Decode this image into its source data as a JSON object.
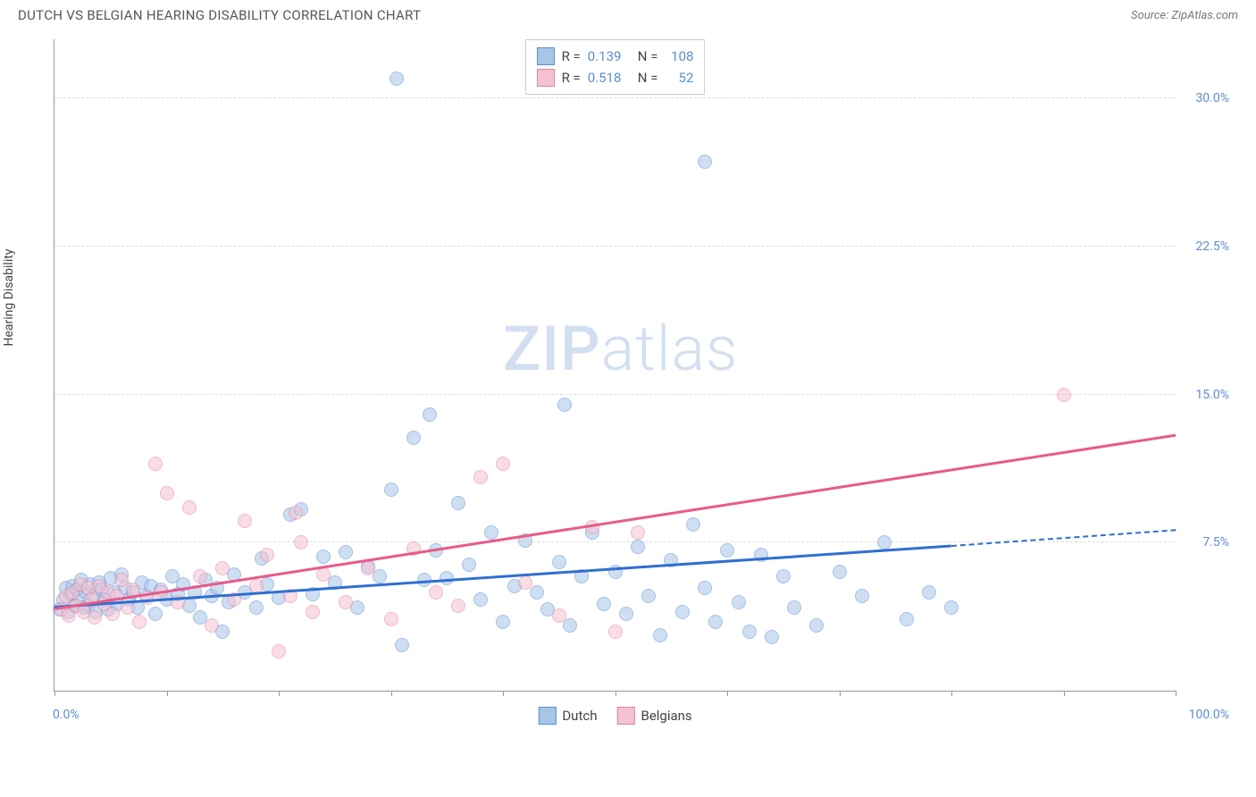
{
  "title": "DUTCH VS BELGIAN HEARING DISABILITY CORRELATION CHART",
  "source": "Source: ZipAtlas.com",
  "ylabel": "Hearing Disability",
  "watermark": {
    "zip": "ZIP",
    "atlas": "atlas",
    "color": "#d3dff0"
  },
  "chart": {
    "type": "scatter",
    "background_color": "#ffffff",
    "grid_color": "#dddddd",
    "axis_color": "#999999",
    "label_color_blue": "#5b8dd6",
    "title_fontsize": 15,
    "label_fontsize": 14,
    "xlim": [
      0,
      100
    ],
    "ylim": [
      0,
      33
    ],
    "x_ticks": [
      0,
      10,
      20,
      30,
      40,
      50,
      60,
      70,
      80,
      90,
      100
    ],
    "x_tick_labels": {
      "0": "0.0%",
      "100": "100.0%"
    },
    "y_gridlines": [
      7.5,
      15.0,
      22.5,
      30.0
    ],
    "y_tick_labels": [
      "7.5%",
      "15.0%",
      "22.5%",
      "30.0%"
    ],
    "point_radius": 8,
    "point_opacity": 0.55,
    "series": [
      {
        "name": "Dutch",
        "fill": "#a8c5e8",
        "stroke": "#5b8dd6",
        "R": "0.139",
        "N": "108",
        "trend": {
          "x1": 0,
          "y1": 4.3,
          "x2": 80,
          "y2": 7.4,
          "dash_to_x": 100,
          "dash_to_y": 8.2,
          "color": "#2f6fd0",
          "width": 2.5
        },
        "points": [
          [
            0.5,
            4.1
          ],
          [
            0.8,
            4.6
          ],
          [
            1,
            5.2
          ],
          [
            1.2,
            4.0
          ],
          [
            1.4,
            4.9
          ],
          [
            1.6,
            5.3
          ],
          [
            1.8,
            4.3
          ],
          [
            2.0,
            5.1
          ],
          [
            2.2,
            4.7
          ],
          [
            2.4,
            5.6
          ],
          [
            2.6,
            4.2
          ],
          [
            2.8,
            5.0
          ],
          [
            3.0,
            4.3
          ],
          [
            3.2,
            5.4
          ],
          [
            3.5,
            4.8
          ],
          [
            3.7,
            4.0
          ],
          [
            4.0,
            5.5
          ],
          [
            4.2,
            5.1
          ],
          [
            4.5,
            4.6
          ],
          [
            4.8,
            4.1
          ],
          [
            5.0,
            5.7
          ],
          [
            5.3,
            5.0
          ],
          [
            5.6,
            4.4
          ],
          [
            6.0,
            5.9
          ],
          [
            6.3,
            5.2
          ],
          [
            6.6,
            4.6
          ],
          [
            7.0,
            5.0
          ],
          [
            7.4,
            4.2
          ],
          [
            7.8,
            5.5
          ],
          [
            8.2,
            4.8
          ],
          [
            8.6,
            5.3
          ],
          [
            9.0,
            3.9
          ],
          [
            9.5,
            5.1
          ],
          [
            10.0,
            4.6
          ],
          [
            10.5,
            5.8
          ],
          [
            11.0,
            4.9
          ],
          [
            11.5,
            5.4
          ],
          [
            12.0,
            4.3
          ],
          [
            12.5,
            5.0
          ],
          [
            13.0,
            3.7
          ],
          [
            13.5,
            5.6
          ],
          [
            14.0,
            4.8
          ],
          [
            14.5,
            5.2
          ],
          [
            15.0,
            3.0
          ],
          [
            15.5,
            4.5
          ],
          [
            16.0,
            5.9
          ],
          [
            17.0,
            5.0
          ],
          [
            18.0,
            4.2
          ],
          [
            18.5,
            6.7
          ],
          [
            19.0,
            5.4
          ],
          [
            20.0,
            4.7
          ],
          [
            21.0,
            8.9
          ],
          [
            22.0,
            9.2
          ],
          [
            23.0,
            4.9
          ],
          [
            24.0,
            6.8
          ],
          [
            25.0,
            5.5
          ],
          [
            26.0,
            7.0
          ],
          [
            27.0,
            4.2
          ],
          [
            28.0,
            6.3
          ],
          [
            29.0,
            5.8
          ],
          [
            30.0,
            10.2
          ],
          [
            30.5,
            31.0
          ],
          [
            31.0,
            2.3
          ],
          [
            32.0,
            12.8
          ],
          [
            33.0,
            5.6
          ],
          [
            33.5,
            14.0
          ],
          [
            34.0,
            7.1
          ],
          [
            35.0,
            5.7
          ],
          [
            36.0,
            9.5
          ],
          [
            37.0,
            6.4
          ],
          [
            38.0,
            4.6
          ],
          [
            39.0,
            8.0
          ],
          [
            40.0,
            3.5
          ],
          [
            41.0,
            5.3
          ],
          [
            42.0,
            7.6
          ],
          [
            43.0,
            5.0
          ],
          [
            44.0,
            4.1
          ],
          [
            45.0,
            6.5
          ],
          [
            45.5,
            14.5
          ],
          [
            46.0,
            3.3
          ],
          [
            47.0,
            5.8
          ],
          [
            48.0,
            8.0
          ],
          [
            49.0,
            4.4
          ],
          [
            50.0,
            6.0
          ],
          [
            51.0,
            3.9
          ],
          [
            52.0,
            7.3
          ],
          [
            53.0,
            4.8
          ],
          [
            54.0,
            2.8
          ],
          [
            55.0,
            6.6
          ],
          [
            56.0,
            4.0
          ],
          [
            57.0,
            8.4
          ],
          [
            58.0,
            5.2
          ],
          [
            59.0,
            3.5
          ],
          [
            60.0,
            7.1
          ],
          [
            61.0,
            4.5
          ],
          [
            62.0,
            3.0
          ],
          [
            63.0,
            6.9
          ],
          [
            64.0,
            2.7
          ],
          [
            65.0,
            5.8
          ],
          [
            58.0,
            26.8
          ],
          [
            66.0,
            4.2
          ],
          [
            68.0,
            3.3
          ],
          [
            70.0,
            6.0
          ],
          [
            72.0,
            4.8
          ],
          [
            74.0,
            7.5
          ],
          [
            76.0,
            3.6
          ],
          [
            78.0,
            5.0
          ],
          [
            80.0,
            4.2
          ]
        ]
      },
      {
        "name": "Belgians",
        "fill": "#f4c3d0",
        "stroke": "#e97fa3",
        "R": "0.518",
        "N": "52",
        "trend": {
          "x1": 0,
          "y1": 4.2,
          "x2": 100,
          "y2": 13.0,
          "color": "#e85a8a",
          "width": 2.5
        },
        "points": [
          [
            0.6,
            4.1
          ],
          [
            1.0,
            4.8
          ],
          [
            1.3,
            3.8
          ],
          [
            1.6,
            5.0
          ],
          [
            2.0,
            4.3
          ],
          [
            2.3,
            5.4
          ],
          [
            2.6,
            4.0
          ],
          [
            3.0,
            5.2
          ],
          [
            3.3,
            4.6
          ],
          [
            3.6,
            3.7
          ],
          [
            4.0,
            5.3
          ],
          [
            4.4,
            4.4
          ],
          [
            4.8,
            5.0
          ],
          [
            5.2,
            3.9
          ],
          [
            5.6,
            4.8
          ],
          [
            6.0,
            5.6
          ],
          [
            6.5,
            4.2
          ],
          [
            7.0,
            5.1
          ],
          [
            7.6,
            3.5
          ],
          [
            8.3,
            4.7
          ],
          [
            9,
            11.5
          ],
          [
            9.5,
            5.0
          ],
          [
            10,
            10.0
          ],
          [
            11,
            4.5
          ],
          [
            12,
            9.3
          ],
          [
            13,
            5.8
          ],
          [
            14,
            3.3
          ],
          [
            15,
            6.2
          ],
          [
            16,
            4.6
          ],
          [
            17,
            8.6
          ],
          [
            18,
            5.3
          ],
          [
            19,
            6.9
          ],
          [
            20,
            2.0
          ],
          [
            21,
            4.8
          ],
          [
            21.5,
            9.0
          ],
          [
            22,
            7.5
          ],
          [
            23,
            4.0
          ],
          [
            24,
            5.9
          ],
          [
            26,
            4.5
          ],
          [
            28,
            6.2
          ],
          [
            30,
            3.6
          ],
          [
            32,
            7.2
          ],
          [
            34,
            5.0
          ],
          [
            36,
            4.3
          ],
          [
            38,
            10.8
          ],
          [
            40,
            11.5
          ],
          [
            42,
            5.5
          ],
          [
            45,
            3.8
          ],
          [
            48,
            8.3
          ],
          [
            50,
            3.0
          ],
          [
            52,
            8.0
          ],
          [
            90,
            15.0
          ]
        ]
      }
    ],
    "bottom_legend": [
      "Dutch",
      "Belgians"
    ],
    "corr_legend": {
      "R_label": "R =",
      "N_label": "N ="
    }
  }
}
